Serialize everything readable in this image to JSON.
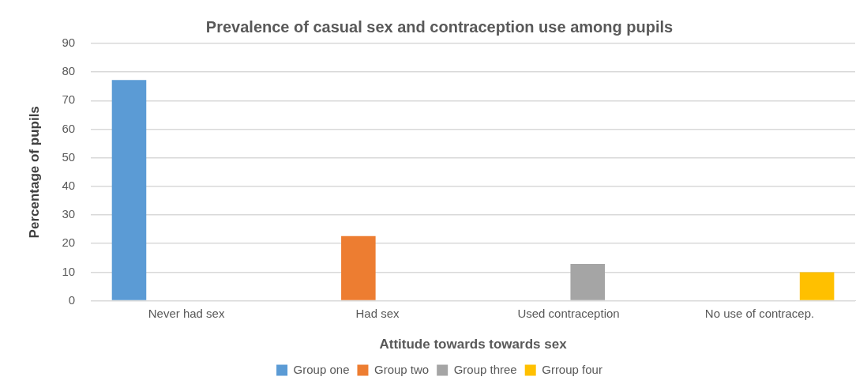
{
  "chart_data": {
    "type": "bar",
    "title": "Prevalence of casual sex and contraception use among pupils",
    "xlabel": "Attitude towards towards sex",
    "ylabel": "Percentage of pupils",
    "categories": [
      "Never had sex",
      "Had sex",
      "Used contraception",
      "No use of contracep."
    ],
    "series": [
      {
        "name": "Group one",
        "color": "#5b9bd5",
        "values": [
          77.2,
          null,
          null,
          null
        ]
      },
      {
        "name": "Group two",
        "color": "#ed7d31",
        "values": [
          null,
          22.6,
          null,
          null
        ]
      },
      {
        "name": "Group three",
        "color": "#a5a5a5",
        "values": [
          null,
          null,
          12.9,
          null
        ]
      },
      {
        "name": "Grroup four",
        "color": "#ffc000",
        "values": [
          null,
          null,
          null,
          10
        ]
      }
    ],
    "ylim": [
      0,
      90
    ],
    "yticks": [
      0,
      10,
      20,
      30,
      40,
      50,
      60,
      70,
      80,
      90
    ],
    "grid": "y",
    "legend": "bottom"
  }
}
